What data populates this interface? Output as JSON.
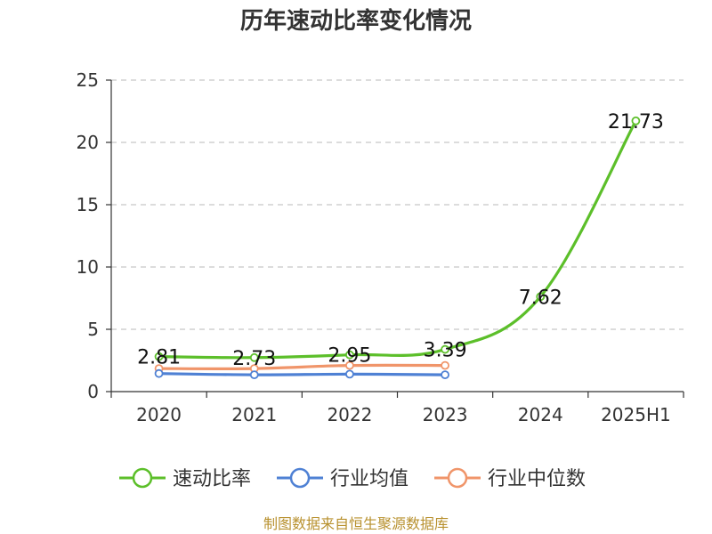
{
  "chart_data": {
    "type": "line",
    "title": "历年速动比率变化情况",
    "categories": [
      "2020",
      "2021",
      "2022",
      "2023",
      "2024",
      "2025H1"
    ],
    "ylim": [
      0,
      25
    ],
    "yticks": [
      0,
      5,
      10,
      15,
      20,
      25
    ],
    "grid": true,
    "legend_position": "bottom",
    "series": [
      {
        "name": "速动比率",
        "color": "#5cbf2a",
        "values": [
          2.81,
          2.73,
          2.95,
          3.39,
          7.62,
          21.73
        ],
        "show_labels": true
      },
      {
        "name": "行业均值",
        "color": "#4f81d4",
        "values": [
          1.45,
          1.35,
          1.4,
          1.35,
          null,
          null
        ],
        "show_labels": false
      },
      {
        "name": "行业中位数",
        "color": "#f0956a",
        "values": [
          1.85,
          1.85,
          2.1,
          2.1,
          null,
          null
        ],
        "show_labels": false
      }
    ],
    "source": "制图数据来自恒生聚源数据库"
  }
}
